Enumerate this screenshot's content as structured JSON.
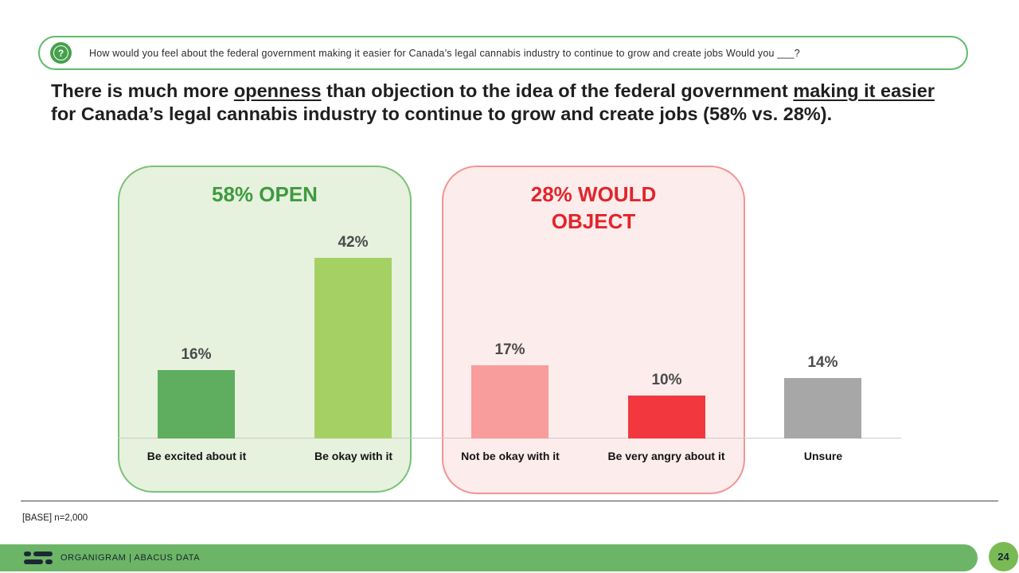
{
  "question": {
    "icon_glyph": "?",
    "text": "How would you feel about the federal government making it easier for Canada’s legal cannabis industry to continue to grow and create jobs  Would you ___?"
  },
  "headline": {
    "part1": "There is much more ",
    "underline1": "openness",
    "part2": " than objection to the idea of the federal government ",
    "underline2": "making it easier",
    "part3": " for Canada’s legal cannabis industry to continue to grow and create jobs (58% vs. 28%)."
  },
  "chart_data": {
    "type": "bar",
    "title": "",
    "categories": [
      "Be excited about it",
      "Be okay with it",
      "Not be okay with it",
      "Be very angry about it",
      "Unsure"
    ],
    "values": [
      16,
      42,
      17,
      10,
      14
    ],
    "value_labels": [
      "16%",
      "42%",
      "17%",
      "10%",
      "14%"
    ],
    "bar_colors": [
      "#5fae5f",
      "#a5d063",
      "#f89c9c",
      "#f2383e",
      "#a7a7a7"
    ],
    "ylim": [
      0,
      45
    ],
    "grid": false,
    "legend": false,
    "groups": [
      {
        "label": "58% OPEN",
        "total": "58%",
        "color": "#3e9b3e",
        "background": "#e6f1de",
        "border": "#79c274",
        "categories": [
          "Be excited about it",
          "Be okay with it"
        ]
      },
      {
        "label": "28% WOULD OBJECT",
        "total": "28%",
        "color": "#e2242b",
        "background": "#fdecec",
        "border": "#f19494",
        "categories": [
          "Not be okay with it",
          "Be very angry about it"
        ]
      }
    ]
  },
  "base_note": "[BASE] n=2,000",
  "footer": {
    "brand": "ORGANIGRAM | ABACUS DATA",
    "page_number": "24",
    "bar_color": "#6db566",
    "badge_color": "#79ba55"
  }
}
